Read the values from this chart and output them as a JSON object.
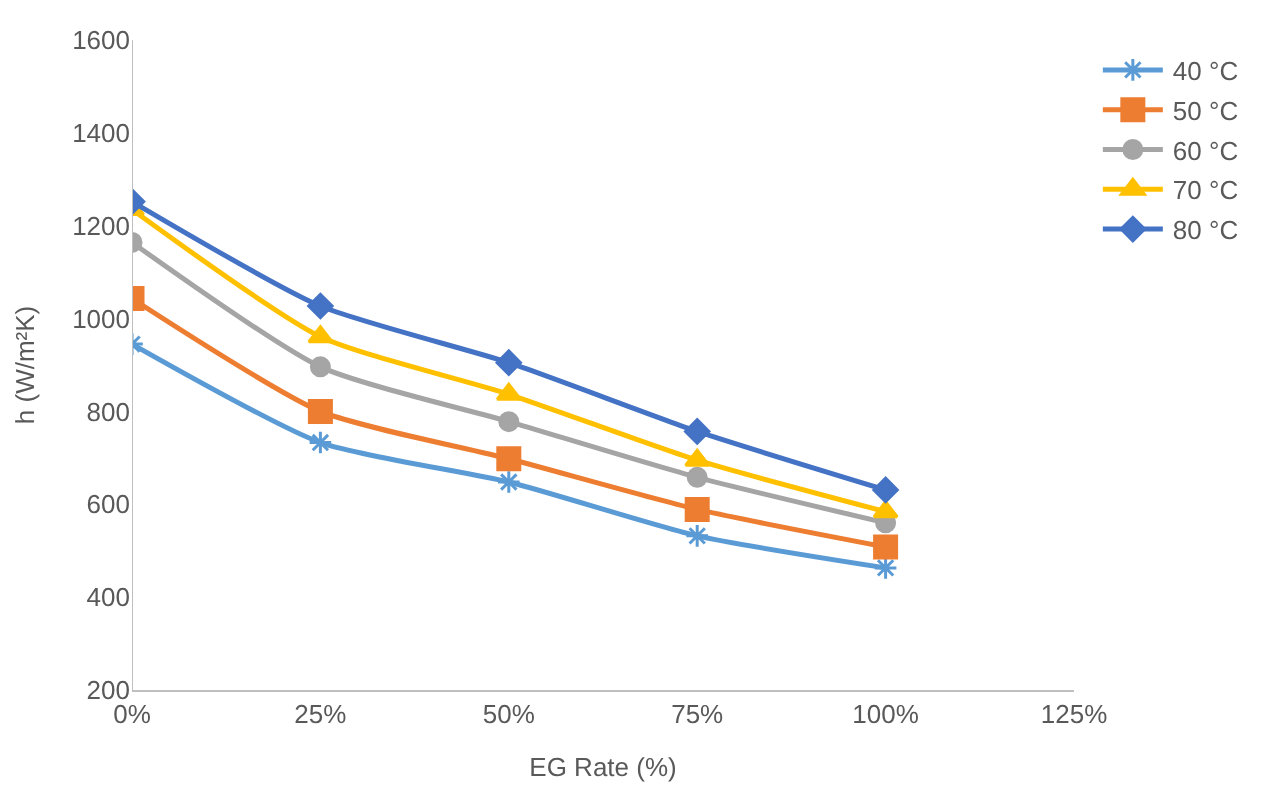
{
  "chart_data": {
    "type": "line",
    "xlabel": "EG Rate (%)",
    "ylabel": "h (W/m²K)",
    "x": [
      0,
      25,
      50,
      75,
      100
    ],
    "xlim": [
      0,
      125
    ],
    "xticks": [
      {
        "value": 0,
        "label": "0%"
      },
      {
        "value": 25,
        "label": "25%"
      },
      {
        "value": 50,
        "label": "50%"
      },
      {
        "value": 75,
        "label": "75%"
      },
      {
        "value": 100,
        "label": "100%"
      },
      {
        "value": 125,
        "label": "125%"
      }
    ],
    "ylim": [
      200,
      1600
    ],
    "yticks": [
      200,
      400,
      600,
      800,
      1000,
      1200,
      1400,
      1600
    ],
    "grid": false,
    "legend": "right",
    "series": [
      {
        "name": "40 °C",
        "color": "#5b9bd5",
        "marker": "cross",
        "values": [
          945,
          733,
          648,
          532,
          463
        ]
      },
      {
        "name": "50 °C",
        "color": "#ed7d31",
        "marker": "square",
        "values": [
          1043,
          800,
          698,
          589,
          508
        ]
      },
      {
        "name": "60 °C",
        "color": "#a5a5a5",
        "marker": "circle",
        "values": [
          1164,
          896,
          778,
          658,
          560
        ]
      },
      {
        "name": "70 °C",
        "color": "#ffc000",
        "marker": "triangle",
        "values": [
          1235,
          961,
          837,
          695,
          584
        ]
      },
      {
        "name": "80 °C",
        "color": "#4472c4",
        "marker": "diamond",
        "values": [
          1252,
          1027,
          905,
          757,
          631
        ]
      }
    ]
  }
}
